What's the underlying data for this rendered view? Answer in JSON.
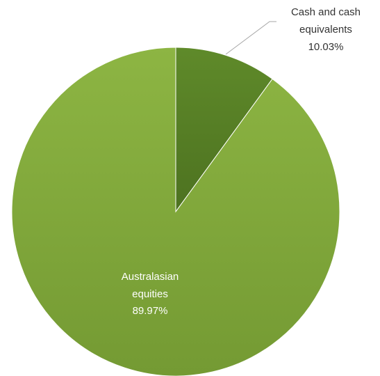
{
  "chart_data": {
    "type": "pie",
    "title": "",
    "slices": [
      {
        "label_lines": [
          "Cash and cash",
          "equivalents"
        ],
        "value": 10.03,
        "value_text": "10.03%",
        "color": "#5f8a2a",
        "color_dark": "#4d7220"
      },
      {
        "label_lines": [
          "Australasian",
          "equities"
        ],
        "value": 89.97,
        "value_text": "89.97%",
        "color": "#8db543",
        "color_dark": "#749a33"
      }
    ],
    "start_angle_deg": 0,
    "direction": "clockwise",
    "legend": "none"
  },
  "colors": {
    "background": "#ffffff",
    "label_dark": "#333333",
    "label_light": "#ffffff",
    "leader_line": "#a6a6a6"
  }
}
